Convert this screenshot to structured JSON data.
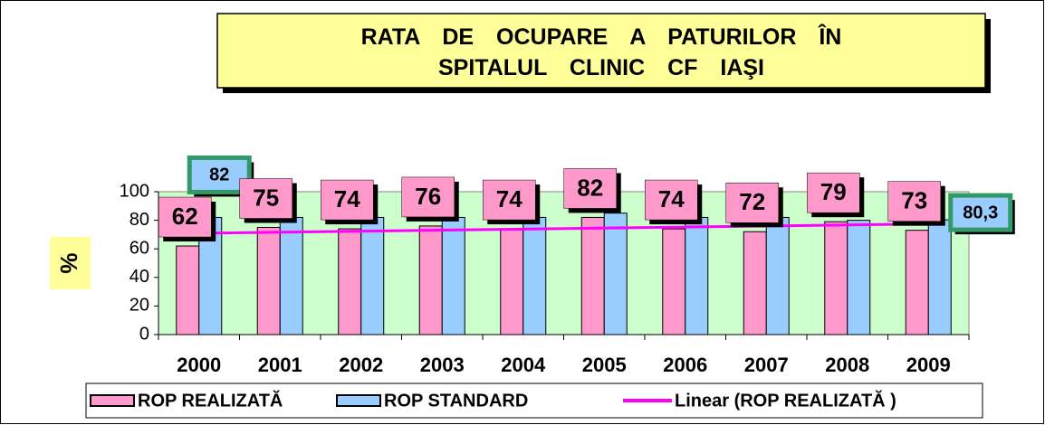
{
  "chart_data": {
    "type": "bar",
    "title": "RATA DE OCUPARE A PATURILOR ÎN SPITALUL CLINIC CF IAŞI",
    "y_label": "%",
    "categories": [
      "2000",
      "2001",
      "2002",
      "2003",
      "2004",
      "2005",
      "2006",
      "2007",
      "2008",
      "2009"
    ],
    "series": [
      {
        "name": "ROP REALIZATĂ",
        "color": "#ff99cc",
        "values": [
          62,
          75,
          74,
          76,
          74,
          82,
          74,
          72,
          79,
          73
        ]
      },
      {
        "name": "ROP STANDARD",
        "color": "#99ccff",
        "values": [
          82,
          82,
          82,
          82,
          82,
          85,
          82,
          82,
          80,
          80.3
        ],
        "value_labels": [
          "82",
          null,
          null,
          null,
          null,
          null,
          null,
          null,
          null,
          "80,3"
        ]
      }
    ],
    "trendline": {
      "name": "Linear (ROP REALIZATĂ )",
      "color": "#ff00ff",
      "series": 0
    },
    "ylim": [
      0,
      100
    ],
    "yticks": [
      0,
      20,
      40,
      60,
      80,
      100
    ],
    "plot_background": "#ccffcc"
  }
}
